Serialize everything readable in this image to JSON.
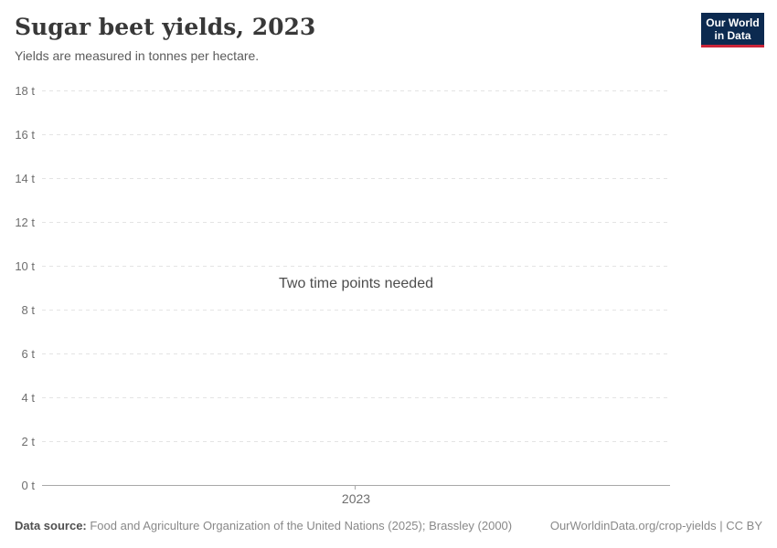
{
  "header": {
    "title": "Sugar beet yields, 2023",
    "subtitle": "Yields are measured in tonnes per hectare.",
    "logo": {
      "line1": "Our World",
      "line2": "in Data"
    }
  },
  "brand_colors": {
    "logo_navy": "#0c2a50",
    "logo_red": "#cb2438"
  },
  "chart_data": {
    "type": "line",
    "title": "Sugar beet yields, 2023",
    "subtitle": "Yields are measured in tonnes per hectare.",
    "unit": "tonnes per hectare",
    "series": [],
    "empty_message": "Two time points needed",
    "x": [
      2023
    ],
    "xticks": [
      "2023"
    ],
    "ylim": [
      0,
      18
    ],
    "yticks": [
      "18 t",
      "16 t",
      "14 t",
      "12 t",
      "10 t",
      "8 t",
      "6 t",
      "4 t",
      "2 t",
      "0 t"
    ],
    "grid": true,
    "gridline_style": "dashed",
    "legend": "none"
  },
  "footer": {
    "source_label": "Data source:",
    "source_text": " Food and Agriculture Organization of the United Nations (2025); Brassley (2000)",
    "link": "OurWorldinData.org/crop-yields | CC BY"
  }
}
